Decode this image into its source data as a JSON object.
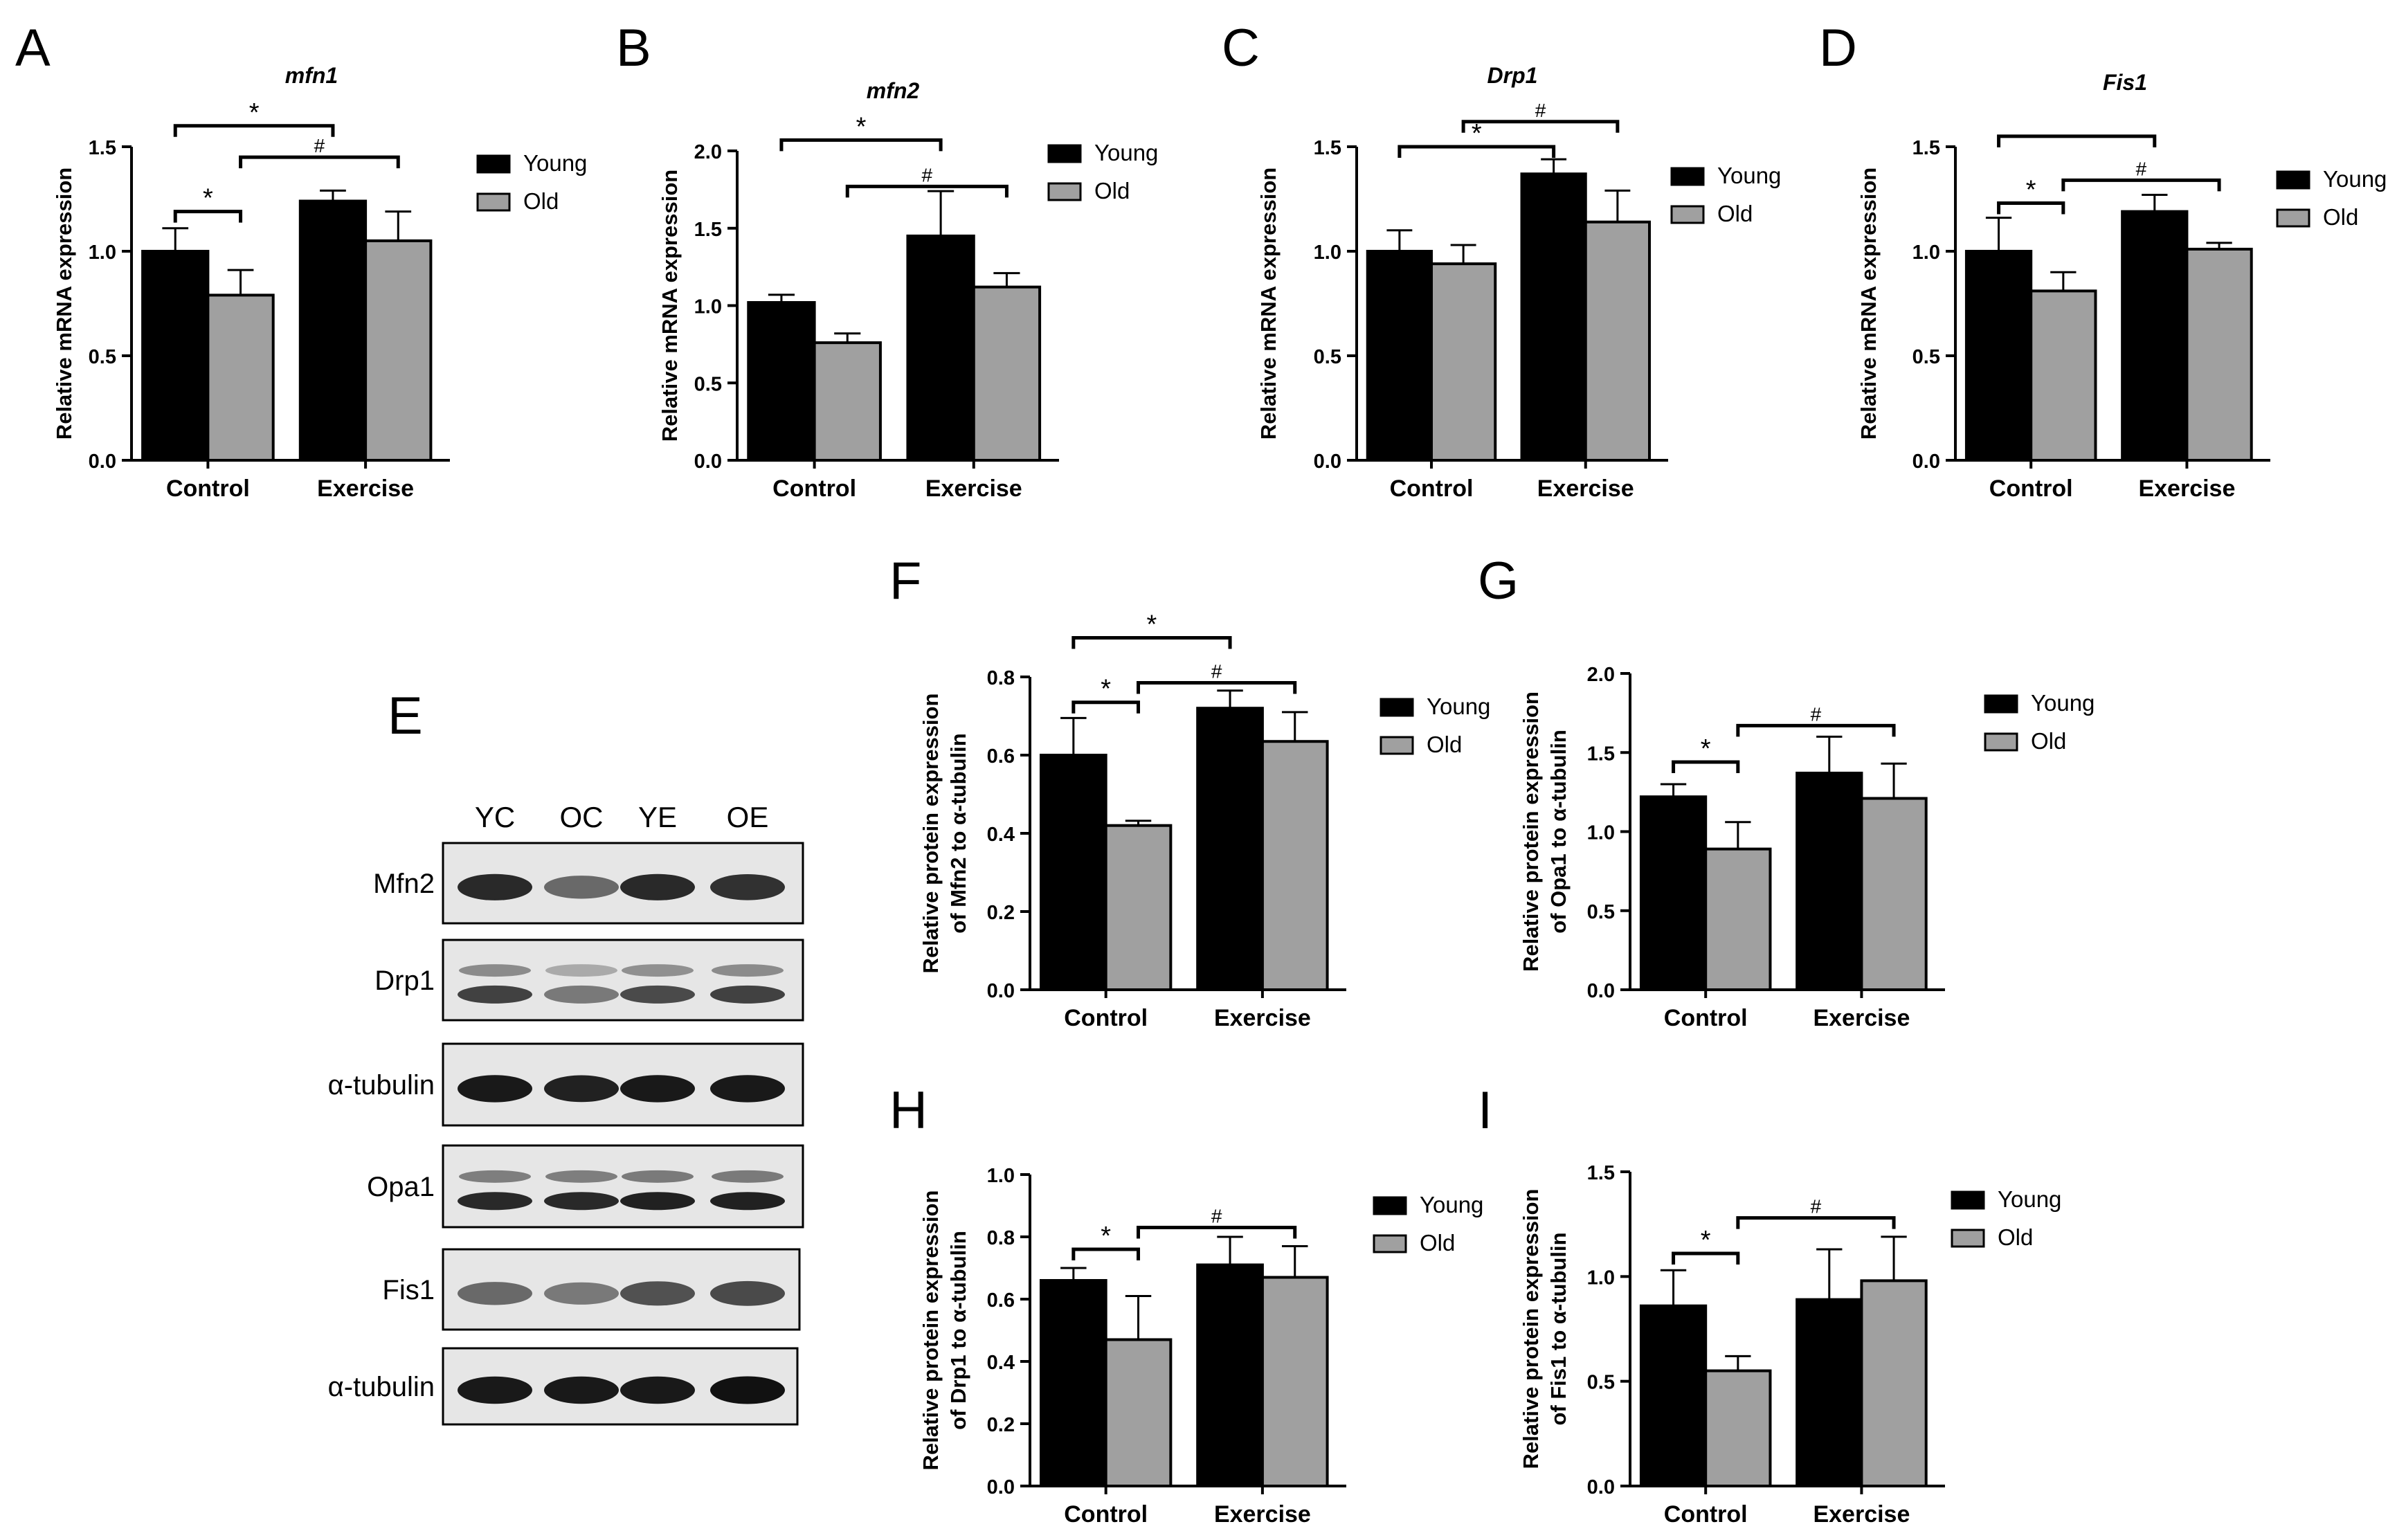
{
  "colors": {
    "young": "#000000",
    "old": "#a0a0a0"
  },
  "chart_data": [
    {
      "panel": "A",
      "type": "bar",
      "title": "mfn1",
      "ylabel": "Relative mRNA expression",
      "ylim": [
        0,
        1.5
      ],
      "yticks": [
        "0.0",
        "0.5",
        "1.0",
        "1.5"
      ],
      "categories": [
        "Control",
        "Exercise"
      ],
      "legend": "top-right",
      "series": [
        {
          "name": "Young",
          "values": [
            1.0,
            1.24
          ],
          "errors": [
            0.11,
            0.05
          ]
        },
        {
          "name": "Old",
          "values": [
            0.79,
            1.05
          ],
          "errors": [
            0.12,
            0.14
          ]
        }
      ],
      "annotations": [
        {
          "symbol": "*",
          "from": [
            0,
            0
          ],
          "to": [
            0,
            1
          ],
          "level": 1.19
        },
        {
          "symbol": "#",
          "from": [
            0,
            1
          ],
          "to": [
            1,
            1
          ],
          "level": 1.45
        },
        {
          "symbol": "*",
          "from": [
            0,
            0
          ],
          "to": [
            1,
            0
          ],
          "level": 1.6
        }
      ]
    },
    {
      "panel": "B",
      "type": "bar",
      "title": "mfn2",
      "ylabel": "Relative mRNA expression",
      "ylim": [
        0,
        2.0
      ],
      "yticks": [
        "0.0",
        "0.5",
        "1.0",
        "1.5",
        "2.0"
      ],
      "categories": [
        "Control",
        "Exercise"
      ],
      "legend": "top-right",
      "series": [
        {
          "name": "Young",
          "values": [
            1.02,
            1.45
          ],
          "errors": [
            0.05,
            0.29
          ]
        },
        {
          "name": "Old",
          "values": [
            0.76,
            1.12
          ],
          "errors": [
            0.06,
            0.09
          ]
        }
      ],
      "annotations": [
        {
          "symbol": "*",
          "from": [
            0,
            0
          ],
          "to": [
            1,
            0
          ],
          "level": 2.07
        },
        {
          "symbol": "#",
          "from": [
            0,
            1
          ],
          "to": [
            1,
            1
          ],
          "level": 1.77
        }
      ]
    },
    {
      "panel": "C",
      "type": "bar",
      "title": "Drp1",
      "ylabel": "Relative mRNA expression",
      "ylim": [
        0,
        1.5
      ],
      "yticks": [
        "0.0",
        "0.5",
        "1.0",
        "1.5"
      ],
      "categories": [
        "Control",
        "Exercise"
      ],
      "legend": "top-right",
      "series": [
        {
          "name": "Young",
          "values": [
            1.0,
            1.37
          ],
          "errors": [
            0.1,
            0.07
          ]
        },
        {
          "name": "Old",
          "values": [
            0.94,
            1.14
          ],
          "errors": [
            0.09,
            0.15
          ]
        }
      ],
      "annotations": [
        {
          "symbol": "*",
          "from": [
            0,
            0
          ],
          "to": [
            1,
            0
          ],
          "level": 1.5
        },
        {
          "symbol": "#",
          "from": [
            0,
            1
          ],
          "to": [
            1,
            1
          ],
          "level": 1.62
        }
      ]
    },
    {
      "panel": "D",
      "type": "bar",
      "title": "Fis1",
      "ylabel": "Relative mRNA expression",
      "ylim": [
        0,
        1.5
      ],
      "yticks": [
        "0.0",
        "0.5",
        "1.0",
        "1.5"
      ],
      "categories": [
        "Control",
        "Exercise"
      ],
      "legend": "top-right",
      "series": [
        {
          "name": "Young",
          "values": [
            1.0,
            1.19
          ],
          "errors": [
            0.16,
            0.08
          ]
        },
        {
          "name": "Old",
          "values": [
            0.81,
            1.01
          ],
          "errors": [
            0.09,
            0.03
          ]
        }
      ],
      "annotations": [
        {
          "symbol": "*",
          "from": [
            0,
            0
          ],
          "to": [
            0,
            1
          ],
          "level": 1.23
        },
        {
          "symbol": "#",
          "from": [
            0,
            1
          ],
          "to": [
            1,
            1
          ],
          "level": 1.34
        },
        {
          "symbol": "",
          "from": [
            0,
            0
          ],
          "to": [
            1,
            0
          ],
          "level": 1.55
        }
      ]
    },
    {
      "panel": "F",
      "type": "bar",
      "title": "",
      "ylabel": [
        "Relative protein expression",
        "of Mfn2 to α-tubulin"
      ],
      "ylim": [
        0,
        0.8
      ],
      "yticks": [
        "0.0",
        "0.2",
        "0.4",
        "0.6",
        "0.8"
      ],
      "categories": [
        "Control",
        "Exercise"
      ],
      "legend": "top-right",
      "series": [
        {
          "name": "Young",
          "values": [
            0.6,
            0.72
          ],
          "errors": [
            0.095,
            0.045
          ]
        },
        {
          "name": "Old",
          "values": [
            0.42,
            0.635
          ],
          "errors": [
            0.012,
            0.075
          ]
        }
      ],
      "annotations": [
        {
          "symbol": "*",
          "from": [
            0,
            0
          ],
          "to": [
            0,
            1
          ],
          "level": 0.735
        },
        {
          "symbol": "#",
          "from": [
            0,
            1
          ],
          "to": [
            1,
            1
          ],
          "level": 0.785
        },
        {
          "symbol": "*",
          "from": [
            0,
            0
          ],
          "to": [
            1,
            0
          ],
          "level": 0.9
        }
      ]
    },
    {
      "panel": "G",
      "type": "bar",
      "title": "",
      "ylabel": [
        "Relative protein expression",
        "of Opa1 to α-tubulin"
      ],
      "ylim": [
        0,
        2.0
      ],
      "yticks": [
        "0.0",
        "0.5",
        "1.0",
        "1.5",
        "2.0"
      ],
      "categories": [
        "Control",
        "Exercise"
      ],
      "legend": "top-right",
      "series": [
        {
          "name": "Young",
          "values": [
            1.22,
            1.37
          ],
          "errors": [
            0.08,
            0.23
          ]
        },
        {
          "name": "Old",
          "values": [
            0.89,
            1.21
          ],
          "errors": [
            0.17,
            0.22
          ]
        }
      ],
      "annotations": [
        {
          "symbol": "*",
          "from": [
            0,
            0
          ],
          "to": [
            0,
            1
          ],
          "level": 1.44
        },
        {
          "symbol": "#",
          "from": [
            0,
            1
          ],
          "to": [
            1,
            1
          ],
          "level": 1.67
        }
      ]
    },
    {
      "panel": "H",
      "type": "bar",
      "title": "",
      "ylabel": [
        "Relative protein expression",
        "of Drp1 to α-tubulin"
      ],
      "ylim": [
        0,
        1.0
      ],
      "yticks": [
        "0.0",
        "0.2",
        "0.4",
        "0.6",
        "0.8",
        "1.0"
      ],
      "categories": [
        "Control",
        "Exercise"
      ],
      "legend": "top-right",
      "series": [
        {
          "name": "Young",
          "values": [
            0.66,
            0.71
          ],
          "errors": [
            0.04,
            0.09
          ]
        },
        {
          "name": "Old",
          "values": [
            0.47,
            0.67
          ],
          "errors": [
            0.14,
            0.1
          ]
        }
      ],
      "annotations": [
        {
          "symbol": "*",
          "from": [
            0,
            0
          ],
          "to": [
            0,
            1
          ],
          "level": 0.76
        },
        {
          "symbol": "#",
          "from": [
            0,
            1
          ],
          "to": [
            1,
            1
          ],
          "level": 0.83
        }
      ]
    },
    {
      "panel": "I",
      "type": "bar",
      "title": "",
      "ylabel": [
        "Relative protein expression",
        "of Fis1 to α-tubulin"
      ],
      "ylim": [
        0,
        1.5
      ],
      "yticks": [
        "0.0",
        "0.5",
        "1.0",
        "1.5"
      ],
      "categories": [
        "Control",
        "Exercise"
      ],
      "legend": "top-right",
      "series": [
        {
          "name": "Young",
          "values": [
            0.86,
            0.89
          ],
          "errors": [
            0.17,
            0.24
          ]
        },
        {
          "name": "Old",
          "values": [
            0.55,
            0.98
          ],
          "errors": [
            0.07,
            0.21
          ]
        }
      ],
      "annotations": [
        {
          "symbol": "*",
          "from": [
            0,
            0
          ],
          "to": [
            0,
            1
          ],
          "level": 1.11
        },
        {
          "symbol": "#",
          "from": [
            0,
            1
          ],
          "to": [
            1,
            1
          ],
          "level": 1.28
        }
      ]
    }
  ],
  "blot": {
    "panel": "E",
    "lanes": [
      "YC",
      "OC",
      "YE",
      "OE"
    ],
    "rows": [
      {
        "label": "Mfn2",
        "intensity": [
          0.85,
          0.45,
          0.85,
          0.8
        ],
        "bands": 1
      },
      {
        "label": "Drp1",
        "intensity": [
          0.7,
          0.35,
          0.65,
          0.7
        ],
        "bands": 2
      },
      {
        "label": "α-tubulin",
        "intensity": [
          0.95,
          0.9,
          0.95,
          0.95
        ],
        "bands": 1
      },
      {
        "label": "Opa1",
        "intensity": [
          0.85,
          0.85,
          0.9,
          0.9
        ],
        "bands": 2
      },
      {
        "label": "Fis1",
        "intensity": [
          0.45,
          0.35,
          0.6,
          0.65
        ],
        "bands": 1
      },
      {
        "label": "α-tubulin",
        "intensity": [
          0.95,
          0.95,
          0.95,
          1.0
        ],
        "bands": 1
      }
    ]
  }
}
